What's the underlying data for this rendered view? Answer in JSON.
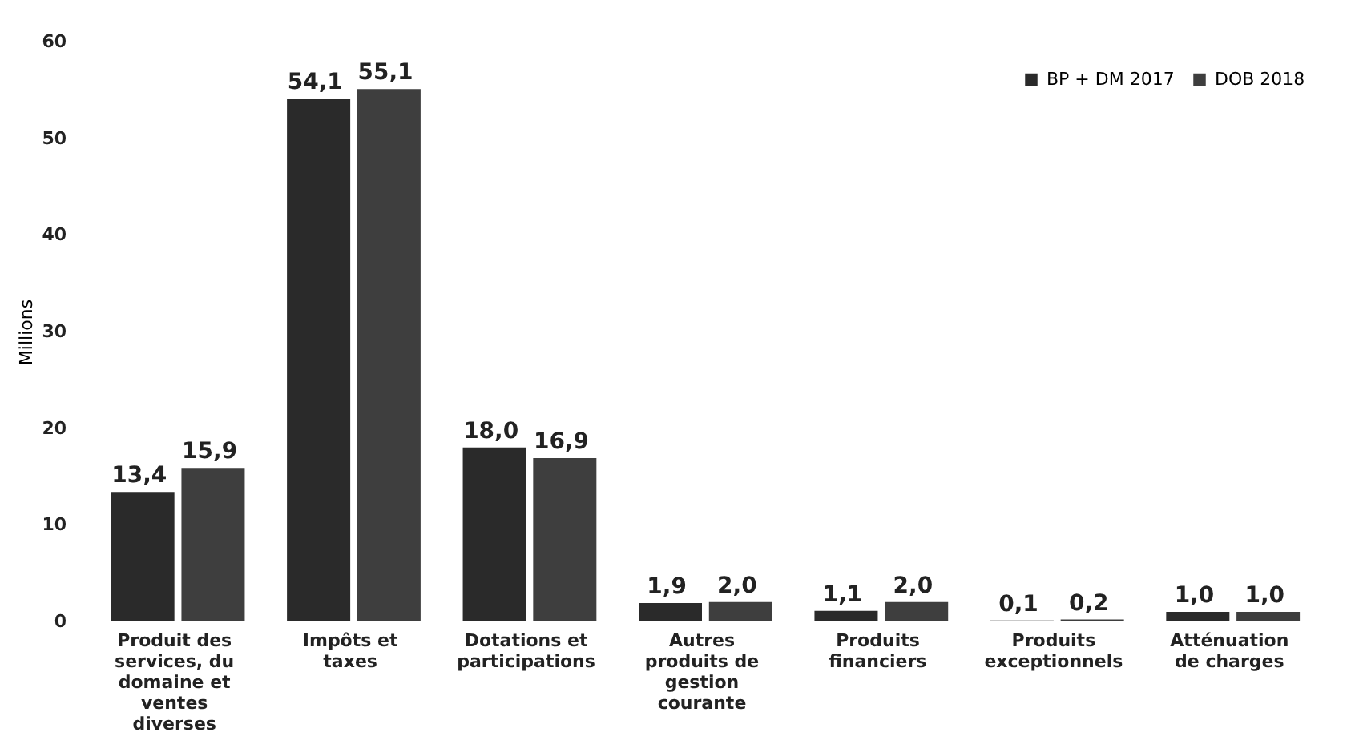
{
  "chart_data": {
    "type": "bar",
    "ylabel": "Millions",
    "categories": [
      "Produit des services, du domaine et ventes diverses",
      "Impôts et taxes",
      "Dotations et participations",
      "Autres produits de gestion courante",
      "Produits financiers",
      "Produits exceptionnels",
      "Atténuation de charges"
    ],
    "series": [
      {
        "name": "BP + DM 2017",
        "color": "#2a2a2a",
        "values": [
          13.4,
          54.1,
          18.0,
          1.9,
          1.1,
          0.1,
          1.0
        ],
        "value_labels": [
          "13,4",
          "54,1",
          "18,0",
          "1,9",
          "1,1",
          "0,1",
          "1,0"
        ]
      },
      {
        "name": "DOB 2018",
        "color": "#3e3e3e",
        "values": [
          15.9,
          55.1,
          16.9,
          2.0,
          2.0,
          0.2,
          1.0
        ],
        "value_labels": [
          "15,9",
          "55,1",
          "16,9",
          "2,0",
          "2,0",
          "0,2",
          "1,0"
        ]
      }
    ],
    "ylim": [
      0,
      60
    ],
    "yticks": [
      0,
      10,
      20,
      30,
      40,
      50,
      60
    ],
    "grid": false,
    "legend": "top right"
  }
}
